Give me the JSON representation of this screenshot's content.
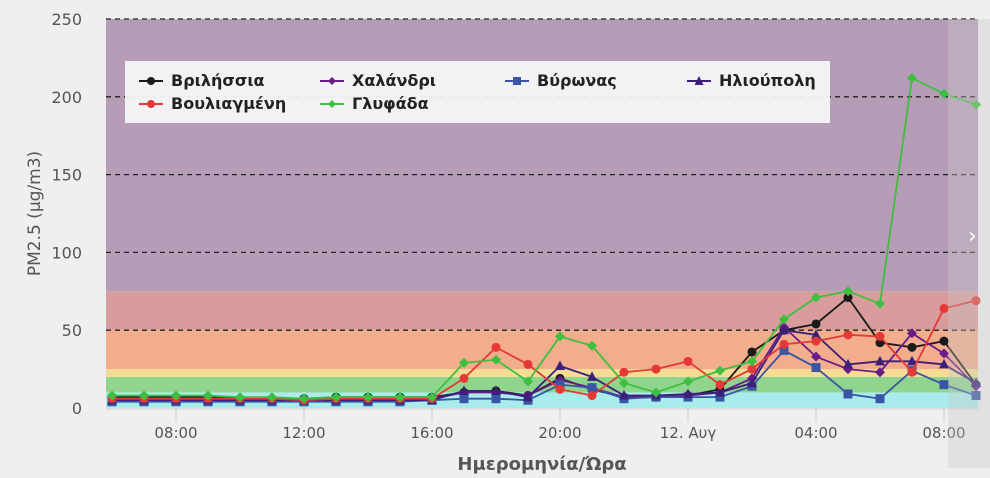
{
  "chart_data": {
    "type": "line",
    "title": "",
    "xlabel": "Ημερομηνία/Ώρα",
    "ylabel": "PM2.5 (μg/m3)",
    "ylim": [
      0,
      250
    ],
    "yticks": [
      0,
      50,
      100,
      150,
      200,
      250
    ],
    "grid": "dashed horizontal lines at 50, 100, 150, 200, 250",
    "legend_placement": "top-left",
    "x": [
      "06:00",
      "07:00",
      "08:00",
      "09:00",
      "10:00",
      "11:00",
      "12:00",
      "13:00",
      "14:00",
      "15:00",
      "16:00",
      "17:00",
      "18:00",
      "19:00",
      "20:00",
      "21:00",
      "22:00",
      "23:00",
      "00:00",
      "01:00",
      "02:00",
      "03:00",
      "04:00",
      "05:00",
      "06:00",
      "07:00",
      "08:00",
      "09:00"
    ],
    "xtick_labels": [
      {
        "at": "08:00",
        "label": "08:00"
      },
      {
        "at": "12:00",
        "label": "12:00"
      },
      {
        "at": "16:00",
        "label": "16:00"
      },
      {
        "at": "20:00",
        "label": "20:00"
      },
      {
        "at": "00:00",
        "label": "12. Αυγ"
      },
      {
        "at": "04:00",
        "label": "04:00"
      },
      {
        "at": "08:00b",
        "label": "08:00"
      }
    ],
    "bands": [
      {
        "from": 0,
        "to": 10,
        "color": "#a9ecec"
      },
      {
        "from": 10,
        "to": 20,
        "color": "#8fd58e"
      },
      {
        "from": 20,
        "to": 25,
        "color": "#f5dc92"
      },
      {
        "from": 25,
        "to": 50,
        "color": "#f2ad8c"
      },
      {
        "from": 50,
        "to": 75,
        "color": "#d99c9c"
      },
      {
        "from": 75,
        "to": 250,
        "color": "#b59db8"
      }
    ],
    "series": [
      {
        "name": "Βριλήσσια",
        "color": "#1a1a1a",
        "marker": "circle",
        "values": [
          7,
          7,
          7,
          7,
          6,
          6,
          6,
          7,
          7,
          7,
          7,
          10,
          11,
          8,
          19,
          12,
          7,
          8,
          8,
          12,
          36,
          50,
          54,
          71,
          42,
          39,
          43,
          15
        ]
      },
      {
        "name": "Χαλάνδρι",
        "color": "#6a1b8a",
        "marker": "diamond",
        "values": [
          6,
          6,
          6,
          6,
          6,
          5,
          5,
          6,
          6,
          6,
          6,
          10,
          10,
          8,
          18,
          13,
          7,
          7,
          8,
          10,
          19,
          52,
          33,
          25,
          23,
          48,
          35,
          14
        ]
      },
      {
        "name": "Βύρωνας",
        "color": "#3a55a6",
        "marker": "square",
        "values": [
          4,
          4,
          4,
          4,
          4,
          4,
          4,
          4,
          4,
          4,
          5,
          6,
          6,
          5,
          15,
          13,
          6,
          7,
          7,
          7,
          14,
          37,
          26,
          9,
          6,
          24,
          15,
          8
        ]
      },
      {
        "name": "Ηλιούπολη",
        "color": "#3b1f7a",
        "marker": "triangle",
        "values": [
          5,
          5,
          5,
          5,
          5,
          5,
          5,
          5,
          5,
          5,
          5,
          11,
          11,
          7,
          27,
          20,
          8,
          8,
          9,
          10,
          16,
          50,
          47,
          28,
          30,
          30,
          28,
          16
        ]
      },
      {
        "name": "Βουλιαγμένη",
        "color": "#e53935",
        "marker": "circle",
        "values": [
          6,
          6,
          6,
          6,
          6,
          6,
          5,
          6,
          6,
          6,
          6,
          19,
          39,
          28,
          12,
          8,
          23,
          25,
          30,
          15,
          25,
          41,
          43,
          47,
          46,
          23,
          64,
          69
        ]
      },
      {
        "name": "Γλυφάδα",
        "color": "#3fbf3f",
        "marker": "diamond",
        "values": [
          8,
          8,
          8,
          8,
          7,
          7,
          6,
          7,
          7,
          7,
          7,
          29,
          31,
          17,
          46,
          40,
          16,
          10,
          17,
          24,
          30,
          57,
          71,
          75,
          67,
          212,
          202,
          195
        ]
      }
    ]
  }
}
